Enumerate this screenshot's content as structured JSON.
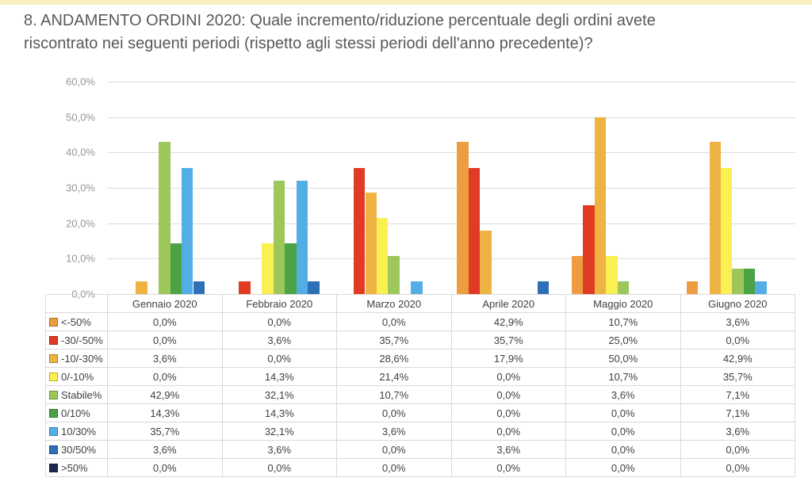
{
  "title": "8. ANDAMENTO ORDINI 2020: Quale incremento/riduzione percentuale degli ordini avete riscontrato nei seguenti periodi (rispetto agli stessi periodi dell'anno precedente)?",
  "colors": {
    "top_strip": "#faf0c4",
    "gridline": "#dcdcdc",
    "axis_label": "#959595",
    "table_border": "#d9d9d9",
    "table_text": "#3f3f3f",
    "title_text": "#595959"
  },
  "chart_data": {
    "type": "bar",
    "title": "",
    "xlabel": "",
    "ylabel": "",
    "categories": [
      "Gennaio 2020",
      "Febbraio 2020",
      "Marzo 2020",
      "Aprile 2020",
      "Maggio 2020",
      "Giugno 2020"
    ],
    "series": [
      {
        "name": "<-50%",
        "color": "#ed9d40",
        "values": [
          0.0,
          0.0,
          0.0,
          42.9,
          10.7,
          3.6
        ]
      },
      {
        "name": "-30/-50%",
        "color": "#e03b24",
        "values": [
          0.0,
          3.6,
          35.7,
          35.7,
          25.0,
          0.0
        ]
      },
      {
        "name": "-10/-30%",
        "color": "#efb343",
        "values": [
          3.6,
          0.0,
          28.6,
          17.9,
          50.0,
          42.9
        ]
      },
      {
        "name": "0/-10%",
        "color": "#faf052",
        "values": [
          0.0,
          14.3,
          21.4,
          0.0,
          10.7,
          35.7
        ]
      },
      {
        "name": "Stabile%",
        "color": "#9dc65b",
        "values": [
          42.9,
          32.1,
          10.7,
          0.0,
          3.6,
          7.1
        ]
      },
      {
        "name": "0/10%",
        "color": "#4ba346",
        "values": [
          14.3,
          14.3,
          0.0,
          0.0,
          0.0,
          7.1
        ]
      },
      {
        "name": "10/30%",
        "color": "#52aee5",
        "values": [
          35.7,
          32.1,
          3.6,
          0.0,
          0.0,
          3.6
        ]
      },
      {
        "name": "30/50%",
        "color": "#2e6fb7",
        "values": [
          3.6,
          3.6,
          0.0,
          3.6,
          0.0,
          0.0
        ]
      },
      {
        "name": ">50%",
        "color": "#1b2950",
        "values": [
          0.0,
          0.0,
          0.0,
          0.0,
          0.0,
          0.0
        ]
      }
    ],
    "ylim": [
      0,
      60
    ],
    "ytick_step": 10,
    "yticks": [
      "0,0%",
      "10,0%",
      "20,0%",
      "30,0%",
      "40,0%",
      "50,0%",
      "60,0%"
    ],
    "grid": true,
    "legend_position": "table-left-column",
    "value_format": "percent, 1 decimal, comma separator"
  }
}
